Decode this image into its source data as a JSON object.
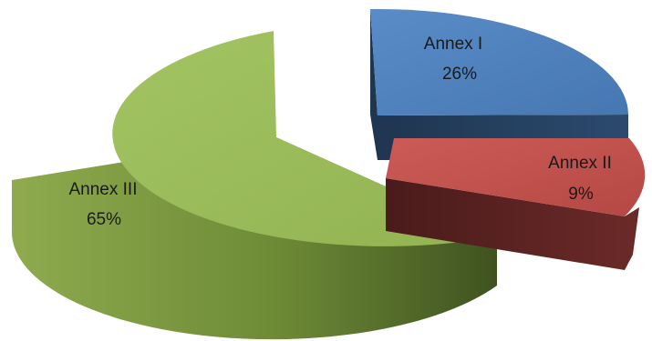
{
  "chart_data": {
    "type": "pie",
    "title": "",
    "categories": [
      "Annex I",
      "Annex II",
      "Annex III"
    ],
    "values": [
      26,
      9,
      65
    ],
    "value_labels": [
      "26%",
      "9%",
      "65%"
    ],
    "colors": [
      "#4f81bd",
      "#c0504d",
      "#9bbb59"
    ],
    "legend": "none"
  }
}
